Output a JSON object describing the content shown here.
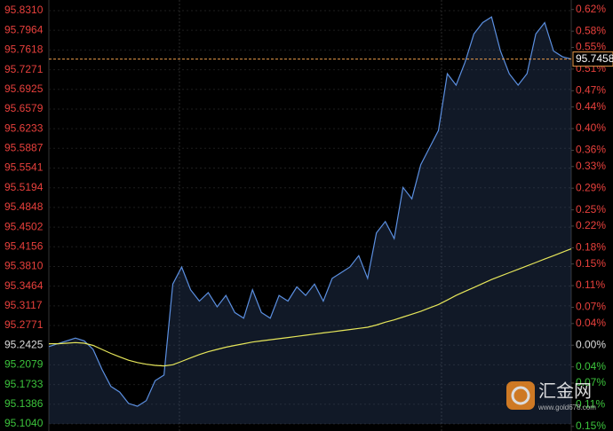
{
  "chart_data": {
    "type": "line",
    "series": [
      {
        "name": "price",
        "color": "#5b8fe0",
        "values": [
          95.24,
          95.245,
          95.25,
          95.255,
          95.25,
          95.235,
          95.2,
          95.17,
          95.16,
          95.14,
          95.135,
          95.145,
          95.18,
          95.19,
          95.35,
          95.38,
          95.34,
          95.32,
          95.335,
          95.31,
          95.33,
          95.3,
          95.29,
          95.34,
          95.3,
          95.29,
          95.33,
          95.32,
          95.345,
          95.33,
          95.35,
          95.32,
          95.36,
          95.37,
          95.38,
          95.4,
          95.36,
          95.44,
          95.46,
          95.43,
          95.52,
          95.5,
          95.56,
          95.59,
          95.62,
          95.72,
          95.7,
          95.74,
          95.79,
          95.81,
          95.82,
          95.76,
          95.72,
          95.7,
          95.72,
          95.79,
          95.81,
          95.76,
          95.75,
          95.7458
        ]
      },
      {
        "name": "average",
        "color": "#e6e65a",
        "values": [
          95.245,
          95.245,
          95.246,
          95.247,
          95.246,
          95.242,
          95.235,
          95.228,
          95.222,
          95.216,
          95.212,
          95.209,
          95.207,
          95.206,
          95.208,
          95.214,
          95.22,
          95.226,
          95.231,
          95.235,
          95.239,
          95.242,
          95.245,
          95.248,
          95.25,
          95.252,
          95.254,
          95.256,
          95.258,
          95.26,
          95.262,
          95.264,
          95.266,
          95.268,
          95.27,
          95.272,
          95.274,
          95.278,
          95.283,
          95.287,
          95.292,
          95.297,
          95.302,
          95.308,
          95.314,
          95.322,
          95.33,
          95.337,
          95.344,
          95.351,
          95.358,
          95.364,
          95.37,
          95.376,
          95.382,
          95.388,
          95.394,
          95.4,
          95.406,
          95.412
        ]
      }
    ],
    "last_price": 95.7458,
    "ylim": [
      95.104,
      95.831
    ],
    "yticks": [
      {
        "value": 95.831,
        "label": "95.8310"
      },
      95.7964,
      95.7618,
      95.7271,
      95.6925,
      95.6579,
      95.6233,
      95.5887,
      95.5541,
      95.5194,
      95.4848,
      95.4502,
      95.4156,
      {
        "value": 95.381,
        "label": "95.3810"
      },
      95.3464,
      95.3117,
      95.2771,
      95.2425,
      95.2079,
      95.1733,
      95.1386,
      {
        "value": 95.104,
        "label": "95.1040"
      }
    ],
    "y2lim": [
      -0.1454,
      0.6179
    ],
    "y2ticks": [
      {
        "value": 0.62,
        "label": "0.62%"
      },
      {
        "value": 0.58,
        "label": "0.58%"
      },
      {
        "value": 0.55,
        "label": "0.55%"
      },
      {
        "value": 0.51,
        "label": "0.51%"
      },
      {
        "value": 0.47,
        "label": "0.47%"
      },
      {
        "value": 0.44,
        "label": "0.44%"
      },
      {
        "value": 0.4,
        "label": "0.40%"
      },
      {
        "value": 0.36,
        "label": "0.36%"
      },
      {
        "value": 0.33,
        "label": "0.33%"
      },
      {
        "value": 0.29,
        "label": "0.29%"
      },
      {
        "value": 0.25,
        "label": "0.25%"
      },
      {
        "value": 0.22,
        "label": "0.22%"
      },
      {
        "value": 0.18,
        "label": "0.18%"
      },
      {
        "value": 0.15,
        "label": "0.15%"
      },
      {
        "value": 0.11,
        "label": "0.11%"
      },
      {
        "value": 0.07,
        "label": "0.07%"
      },
      {
        "value": 0.04,
        "label": "0.04%"
      },
      {
        "value": 0,
        "label": "0.00%"
      },
      {
        "value": -0.04,
        "label": "0.04%"
      },
      {
        "value": -0.07,
        "label": "0.07%"
      },
      {
        "value": -0.11,
        "label": "0.11%"
      },
      {
        "value": -0.15,
        "label": "0.15%"
      }
    ],
    "grid": true
  },
  "watermark": {
    "name": "汇金网",
    "url": "www.gold678.com"
  }
}
